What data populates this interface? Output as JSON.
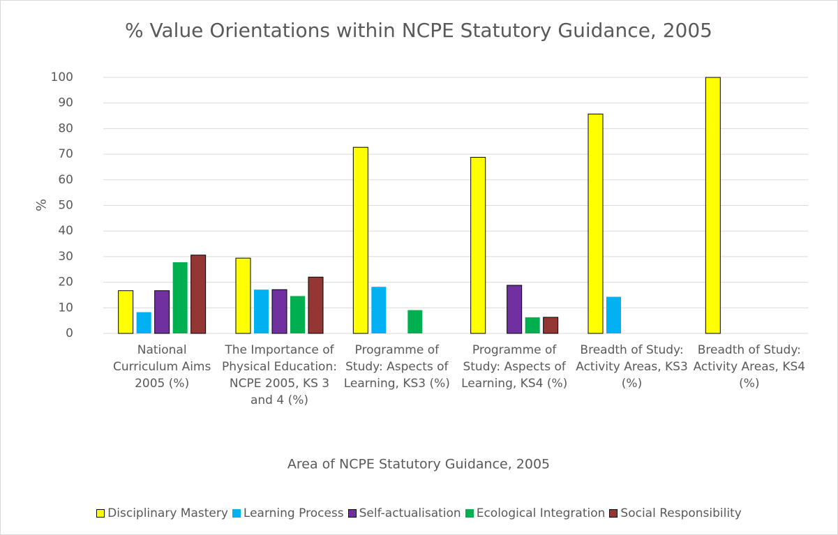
{
  "chart_data": {
    "type": "bar",
    "title": "% Value Orientations within NCPE Statutory Guidance, 2005",
    "x_label": "Area of NCPE Statutory Guidance, 2005",
    "y_label": "%",
    "categories": [
      "National Curriculum Aims 2005 (%)",
      "The Importance of Physical Education: NCPE 2005, KS 3 and 4 (%)",
      "Programme of Study: Aspects of Learning, KS3 (%)",
      "Programme of Study: Aspects of Learning, KS4 (%)",
      "Breadth of Study: Activity Areas, KS3 (%)",
      "Breadth of Study: Activity Areas, KS4 (%)"
    ],
    "series": [
      {
        "name": "Disciplinary Mastery",
        "color": "#ffff00",
        "values": [
          16.7,
          29.4,
          72.7,
          68.8,
          85.7,
          100
        ]
      },
      {
        "name": "Learning Process",
        "color": "#00b0f0",
        "values": [
          8.3,
          17.1,
          18.2,
          0,
          14.3,
          0
        ]
      },
      {
        "name": "Self-actualisation",
        "color": "#7030a0",
        "values": [
          16.7,
          17.1,
          0,
          18.8,
          0,
          0
        ]
      },
      {
        "name": "Ecological Integration",
        "color": "#00b050",
        "values": [
          27.8,
          14.6,
          9.1,
          6.3,
          0,
          0
        ]
      },
      {
        "name": "Social Responsibility",
        "color": "#943634",
        "values": [
          30.6,
          22,
          0,
          6.3,
          0,
          0
        ]
      }
    ],
    "ylim": [
      0,
      100
    ],
    "yticks": [
      0,
      10,
      20,
      30,
      40,
      50,
      60,
      70,
      80,
      90,
      100
    ],
    "grid": true,
    "legend": "bottom"
  }
}
